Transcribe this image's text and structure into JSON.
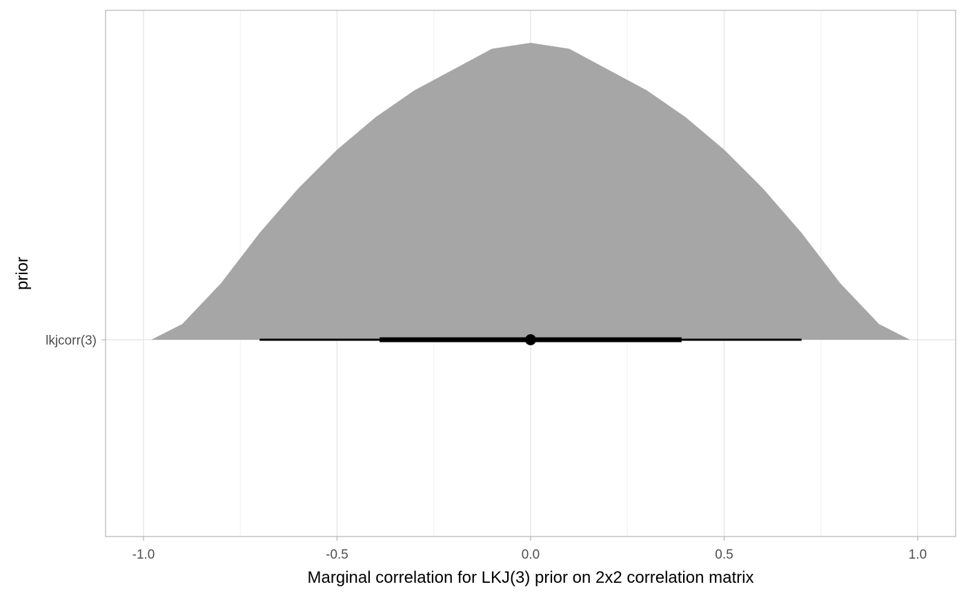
{
  "chart_data": {
    "type": "area",
    "xlabel": "Marginal correlation for LKJ(3) prior on 2x2 correlation matrix",
    "ylabel": "prior",
    "category": "lkjcorr(3)",
    "xlim": [
      -1.1,
      1.1
    ],
    "x_ticks": [
      {
        "value": -1.0,
        "label": "-1.0"
      },
      {
        "value": -0.5,
        "label": "-0.5"
      },
      {
        "value": 0.0,
        "label": "0.0"
      },
      {
        "value": 0.5,
        "label": "0.5"
      },
      {
        "value": 1.0,
        "label": "1.0"
      }
    ],
    "x_minor_ticks": [
      -0.75,
      -0.25,
      0.25,
      0.75
    ],
    "density": {
      "x": [
        -0.98,
        -0.9,
        -0.8,
        -0.7,
        -0.6,
        -0.5,
        -0.4,
        -0.3,
        -0.2,
        -0.1,
        0.0,
        0.1,
        0.2,
        0.3,
        0.4,
        0.5,
        0.6,
        0.7,
        0.8,
        0.9,
        0.98
      ],
      "y": [
        0.0,
        0.053,
        0.19,
        0.36,
        0.51,
        0.64,
        0.75,
        0.84,
        0.91,
        0.98,
        1.0,
        0.98,
        0.91,
        0.84,
        0.75,
        0.64,
        0.51,
        0.36,
        0.19,
        0.053,
        0.0
      ],
      "fill": "#a6a6a6"
    },
    "point_interval": {
      "point": 0.0,
      "interval_66": [
        -0.39,
        0.39
      ],
      "interval_95": [
        -0.7,
        0.7
      ],
      "color": "#000000"
    },
    "grid": true,
    "legend": "none"
  }
}
